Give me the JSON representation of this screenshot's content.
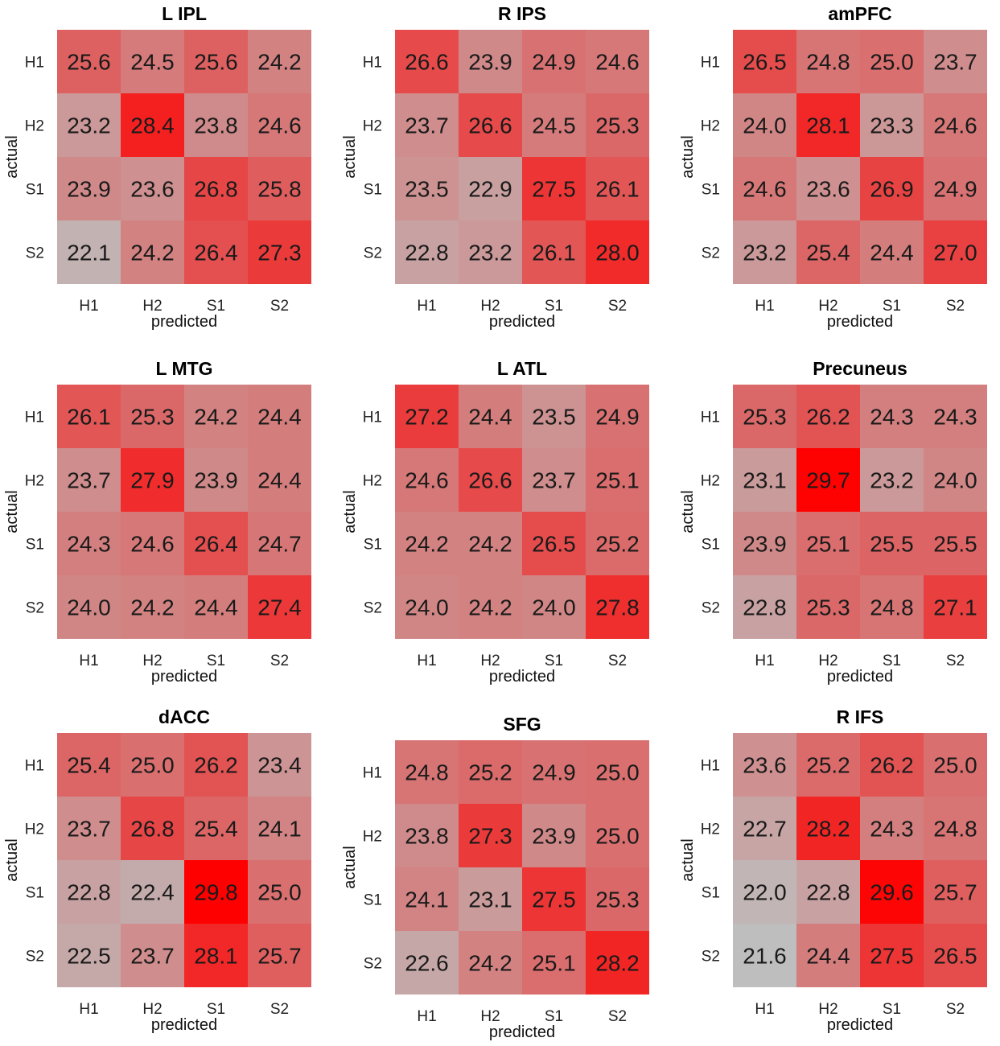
{
  "figure": {
    "description_axes": {
      "x_title": "predicted",
      "y_title": "actual"
    },
    "color_scale": {
      "low": "#bebebe",
      "high": "#ff0000",
      "min": 21.6,
      "max": 29.8
    },
    "categories": [
      "H1",
      "H2",
      "S1",
      "S2"
    ]
  },
  "chart_data": [
    {
      "type": "heatmap",
      "title": "L IPL",
      "xlabel": "predicted",
      "ylabel": "actual",
      "x_categories": [
        "H1",
        "H2",
        "S1",
        "S2"
      ],
      "y_categories": [
        "H1",
        "H2",
        "S1",
        "S2"
      ],
      "values": [
        [
          25.6,
          24.5,
          25.6,
          24.2
        ],
        [
          23.2,
          28.4,
          23.8,
          24.6
        ],
        [
          23.9,
          23.6,
          26.8,
          25.8
        ],
        [
          22.1,
          24.2,
          26.4,
          27.3
        ]
      ]
    },
    {
      "type": "heatmap",
      "title": "R IPS",
      "xlabel": "predicted",
      "ylabel": "actual",
      "x_categories": [
        "H1",
        "H2",
        "S1",
        "S2"
      ],
      "y_categories": [
        "H1",
        "H2",
        "S1",
        "S2"
      ],
      "values": [
        [
          26.6,
          23.9,
          24.9,
          24.6
        ],
        [
          23.7,
          26.6,
          24.5,
          25.3
        ],
        [
          23.5,
          22.9,
          27.5,
          26.1
        ],
        [
          22.8,
          23.2,
          26.1,
          28.0
        ]
      ]
    },
    {
      "type": "heatmap",
      "title": "amPFC",
      "xlabel": "predicted",
      "ylabel": "actual",
      "x_categories": [
        "H1",
        "H2",
        "S1",
        "S2"
      ],
      "y_categories": [
        "H1",
        "H2",
        "S1",
        "S2"
      ],
      "values": [
        [
          26.5,
          24.8,
          25.0,
          23.7
        ],
        [
          24.0,
          28.1,
          23.3,
          24.6
        ],
        [
          24.6,
          23.6,
          26.9,
          24.9
        ],
        [
          23.2,
          25.4,
          24.4,
          27.0
        ]
      ]
    },
    {
      "type": "heatmap",
      "title": "L MTG",
      "xlabel": "predicted",
      "ylabel": "actual",
      "x_categories": [
        "H1",
        "H2",
        "S1",
        "S2"
      ],
      "y_categories": [
        "H1",
        "H2",
        "S1",
        "S2"
      ],
      "values": [
        [
          26.1,
          25.3,
          24.2,
          24.4
        ],
        [
          23.7,
          27.9,
          23.9,
          24.4
        ],
        [
          24.3,
          24.6,
          26.4,
          24.7
        ],
        [
          24.0,
          24.2,
          24.4,
          27.4
        ]
      ]
    },
    {
      "type": "heatmap",
      "title": "L ATL",
      "xlabel": "predicted",
      "ylabel": "actual",
      "x_categories": [
        "H1",
        "H2",
        "S1",
        "S2"
      ],
      "y_categories": [
        "H1",
        "H2",
        "S1",
        "S2"
      ],
      "values": [
        [
          27.2,
          24.4,
          23.5,
          24.9
        ],
        [
          24.6,
          26.6,
          23.7,
          25.1
        ],
        [
          24.2,
          24.2,
          26.5,
          25.2
        ],
        [
          24.0,
          24.2,
          24.0,
          27.8
        ]
      ]
    },
    {
      "type": "heatmap",
      "title": "Precuneus",
      "xlabel": "predicted",
      "ylabel": "actual",
      "x_categories": [
        "H1",
        "H2",
        "S1",
        "S2"
      ],
      "y_categories": [
        "H1",
        "H2",
        "S1",
        "S2"
      ],
      "values": [
        [
          25.3,
          26.2,
          24.3,
          24.3
        ],
        [
          23.1,
          29.7,
          23.2,
          24.0
        ],
        [
          23.9,
          25.1,
          25.5,
          25.5
        ],
        [
          22.8,
          25.3,
          24.8,
          27.1
        ]
      ]
    },
    {
      "type": "heatmap",
      "title": "dACC",
      "xlabel": "predicted",
      "ylabel": "actual",
      "x_categories": [
        "H1",
        "H2",
        "S1",
        "S2"
      ],
      "y_categories": [
        "H1",
        "H2",
        "S1",
        "S2"
      ],
      "values": [
        [
          25.4,
          25.0,
          26.2,
          23.4
        ],
        [
          23.7,
          26.8,
          25.4,
          24.1
        ],
        [
          22.8,
          22.4,
          29.8,
          25.0
        ],
        [
          22.5,
          23.7,
          28.1,
          25.7
        ]
      ]
    },
    {
      "type": "heatmap",
      "title": "SFG",
      "xlabel": "predicted",
      "ylabel": "actual",
      "x_categories": [
        "H1",
        "H2",
        "S1",
        "S2"
      ],
      "y_categories": [
        "H1",
        "H2",
        "S1",
        "S2"
      ],
      "values": [
        [
          24.8,
          25.2,
          24.9,
          25.0
        ],
        [
          23.8,
          27.3,
          23.9,
          25.0
        ],
        [
          24.1,
          23.1,
          27.5,
          25.3
        ],
        [
          22.6,
          24.2,
          25.1,
          28.2
        ]
      ]
    },
    {
      "type": "heatmap",
      "title": "R IFS",
      "xlabel": "predicted",
      "ylabel": "actual",
      "x_categories": [
        "H1",
        "H2",
        "S1",
        "S2"
      ],
      "y_categories": [
        "H1",
        "H2",
        "S1",
        "S2"
      ],
      "values": [
        [
          23.6,
          25.2,
          26.2,
          25.0
        ],
        [
          22.7,
          28.2,
          24.3,
          24.8
        ],
        [
          22.0,
          22.8,
          29.6,
          25.7
        ],
        [
          21.6,
          24.4,
          27.5,
          26.5
        ]
      ]
    }
  ]
}
